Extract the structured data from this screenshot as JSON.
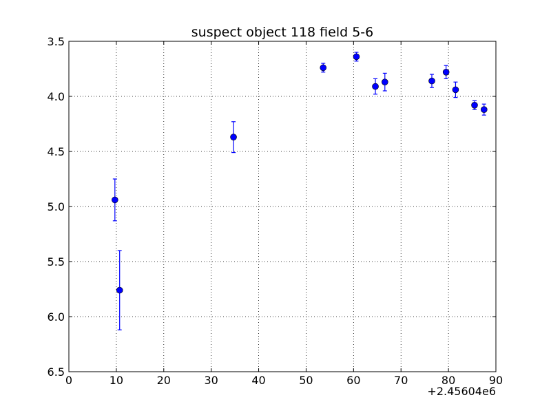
{
  "chart_data": {
    "type": "scatter",
    "title": "suspect object 118 field 5-6",
    "xlabel": "",
    "ylabel": "",
    "x_offset_label": "+2.45604e6",
    "xlim": [
      0,
      90
    ],
    "ylim": [
      3.5,
      6.5
    ],
    "y_inverted": true,
    "grid": true,
    "x_ticks": [
      0,
      10,
      20,
      30,
      40,
      50,
      60,
      70,
      80,
      90
    ],
    "x_tick_labels": [
      "0",
      "10",
      "20",
      "30",
      "40",
      "50",
      "60",
      "70",
      "80",
      "90"
    ],
    "y_ticks": [
      3.5,
      4.0,
      4.5,
      5.0,
      5.5,
      6.0,
      6.5
    ],
    "y_tick_labels": [
      "3.5",
      "4.0",
      "4.5",
      "5.0",
      "5.5",
      "6.0",
      "6.5"
    ],
    "series": [
      {
        "color": "#0000ff",
        "marker": "circle",
        "error_bars": true,
        "points": [
          {
            "x": 9.7,
            "y": 4.94,
            "err": 0.19
          },
          {
            "x": 10.7,
            "y": 5.76,
            "err": 0.36
          },
          {
            "x": 34.7,
            "y": 4.37,
            "err": 0.14
          },
          {
            "x": 53.6,
            "y": 3.74,
            "err": 0.04
          },
          {
            "x": 60.6,
            "y": 3.64,
            "err": 0.04
          },
          {
            "x": 64.6,
            "y": 3.91,
            "err": 0.07
          },
          {
            "x": 66.6,
            "y": 3.87,
            "err": 0.08
          },
          {
            "x": 76.5,
            "y": 3.86,
            "err": 0.06
          },
          {
            "x": 79.5,
            "y": 3.78,
            "err": 0.06
          },
          {
            "x": 81.5,
            "y": 3.94,
            "err": 0.07
          },
          {
            "x": 85.5,
            "y": 4.08,
            "err": 0.04
          },
          {
            "x": 87.5,
            "y": 4.12,
            "err": 0.05
          }
        ]
      }
    ]
  }
}
